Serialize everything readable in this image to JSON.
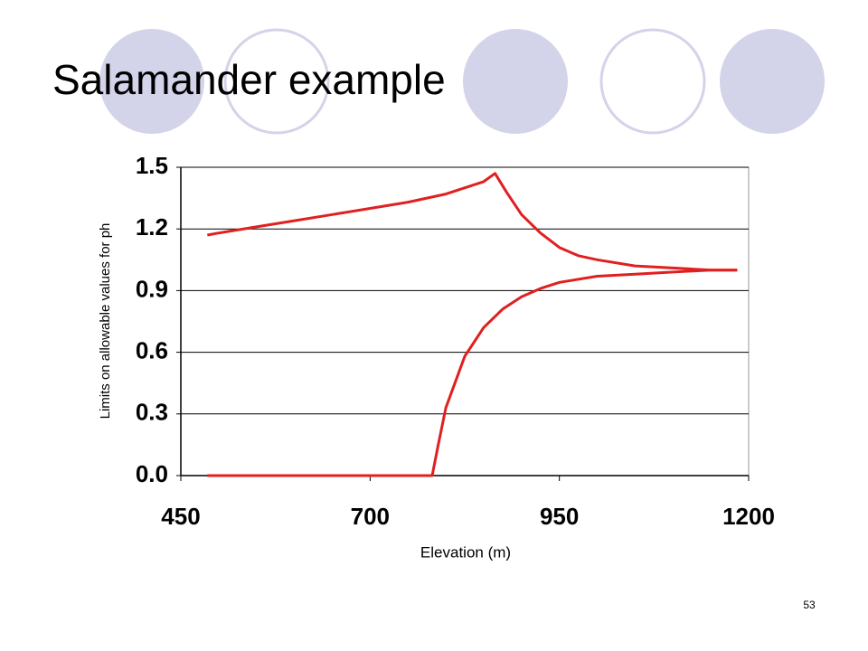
{
  "chart_data": {
    "type": "line",
    "title": "Salamander example",
    "x_label": "Elevation (m)",
    "y_label": "Limits on allowable values for ph",
    "xlim": [
      450,
      1200
    ],
    "xticks": [
      450,
      700,
      950,
      1200
    ],
    "ylim": [
      0,
      1.5
    ],
    "yticks": [
      {
        "value": 0,
        "label": "0.0"
      },
      0.3,
      0.6,
      0.9,
      1.2,
      1.5
    ],
    "grid": true,
    "series": [
      {
        "color": "#e02020",
        "x": [
          485,
          500,
          550,
          600,
          650,
          700,
          750,
          800,
          850,
          865,
          880,
          900,
          925,
          950,
          975,
          1000,
          1050,
          1100,
          1150,
          1185
        ],
        "values": [
          1.17,
          1.18,
          1.21,
          1.24,
          1.27,
          1.3,
          1.33,
          1.37,
          1.43,
          1.47,
          1.38,
          1.27,
          1.18,
          1.11,
          1.07,
          1.05,
          1.02,
          1.01,
          1.0,
          1.0
        ]
      },
      {
        "color": "#e02020",
        "x": [
          485,
          600,
          700,
          782,
          790,
          800,
          825,
          850,
          875,
          900,
          925,
          950,
          1000,
          1050,
          1100,
          1150,
          1185
        ],
        "values": [
          0,
          0,
          0,
          0,
          0.15,
          0.33,
          0.58,
          0.72,
          0.81,
          0.87,
          0.91,
          0.94,
          0.97,
          0.98,
          0.99,
          1.0,
          1.0
        ]
      }
    ]
  },
  "slide": {
    "page_number": "53"
  }
}
